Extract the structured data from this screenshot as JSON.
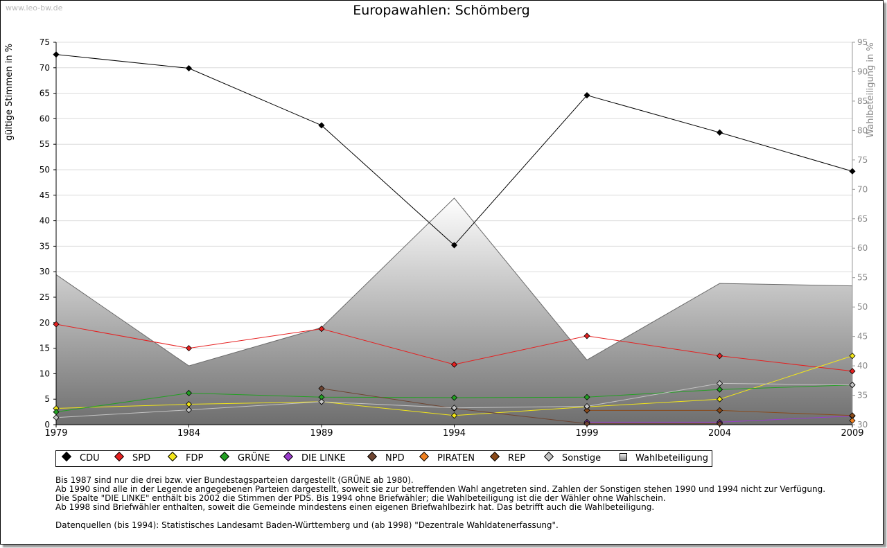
{
  "watermark": "www.leo-bw.de",
  "chart_data": {
    "type": "line",
    "title": "Europawahlen: Schömberg",
    "ylabel": "gültige Stimmen in %",
    "y2label": "Wahlbeteiligung in %",
    "ylim": [
      0,
      75
    ],
    "y2lim": [
      30,
      95
    ],
    "yticks": [
      "0",
      "5",
      "10",
      "15",
      "20",
      "25",
      "30",
      "35",
      "40",
      "45",
      "50",
      "55",
      "60",
      "65",
      "70",
      "75"
    ],
    "y2ticks": [
      "30",
      "35",
      "40",
      "45",
      "50",
      "55",
      "60",
      "65",
      "70",
      "75",
      "80",
      "85",
      "90",
      "95"
    ],
    "categories": [
      "1979",
      "1984",
      "1989",
      "1994",
      "1999",
      "2004",
      "2009"
    ],
    "turnout": {
      "name": "Wahlbeteiligung",
      "values": [
        55.5,
        40.0,
        46.5,
        68.5,
        41.0,
        54.0,
        53.6
      ]
    },
    "series": [
      {
        "name": "CDU",
        "color": "#000000",
        "values": [
          72.6,
          69.9,
          58.7,
          35.2,
          64.6,
          57.3,
          49.7
        ]
      },
      {
        "name": "SPD",
        "color": "#e52020",
        "values": [
          19.7,
          15.0,
          18.8,
          11.8,
          17.4,
          13.5,
          10.5
        ]
      },
      {
        "name": "FDP",
        "color": "#f2e619",
        "values": [
          3.2,
          4.0,
          4.5,
          1.8,
          3.5,
          5.0,
          13.5
        ]
      },
      {
        "name": "GRÜNE",
        "color": "#22a022",
        "values": [
          2.5,
          6.2,
          5.4,
          5.3,
          5.4,
          6.9,
          7.8
        ]
      },
      {
        "name": "DIE LINKE",
        "color": "#9a3ccc",
        "values": [
          null,
          null,
          null,
          null,
          0.5,
          0.5,
          1.7
        ]
      },
      {
        "name": "NPD",
        "color": "#6e4430",
        "values": [
          null,
          null,
          7.1,
          3.2,
          0.2,
          0.2,
          null
        ]
      },
      {
        "name": "PIRATEN",
        "color": "#f08020",
        "values": [
          null,
          null,
          null,
          null,
          null,
          null,
          0.8
        ]
      },
      {
        "name": "REP",
        "color": "#8a4a1a",
        "values": [
          null,
          null,
          null,
          null,
          2.8,
          2.8,
          1.8
        ]
      },
      {
        "name": "Sonstige",
        "color": "#c4c4c4",
        "values": [
          1.4,
          2.9,
          4.5,
          3.3,
          3.6,
          8.1,
          7.8
        ]
      }
    ]
  },
  "legend": {
    "items": [
      "CDU",
      "SPD",
      "FDP",
      "GRÜNE",
      "DIE LINKE",
      "NPD",
      "PIRATEN",
      "REP",
      "Sonstige",
      "Wahlbeteiligung"
    ],
    "colors": [
      "#000000",
      "#e52020",
      "#f2e619",
      "#22a022",
      "#9a3ccc",
      "#6e4430",
      "#f08020",
      "#8a4a1a",
      "#c4c4c4",
      "#cccccc"
    ]
  },
  "notes": [
    "Bis 1987 sind nur die drei bzw. vier Bundestagsparteien dargestellt (GRÜNE ab 1980).",
    "Ab 1990 sind alle in der Legende angegebenen Parteien dargestellt, soweit sie zur betreffenden Wahl angetreten sind. Zahlen der Sonstigen stehen 1990 und 1994 nicht zur Verfügung.",
    "Die Spalte \"DIE LINKE\" enthält bis 2002 die Stimmen der PDS. Bis 1994 ohne Briefwähler; die Wahlbeteiligung ist die der Wähler ohne Wahlschein.",
    "Ab 1998 sind Briefwähler enthalten, soweit die Gemeinde mindestens einen eigenen Briefwahlbezirk hat. Das betrifft auch die Wahlbeteiligung.",
    "",
    "Datenquellen (bis 1994): Statistisches Landesamt Baden-Württemberg und (ab 1998) \"Dezentrale Wahldatenerfassung\"."
  ]
}
